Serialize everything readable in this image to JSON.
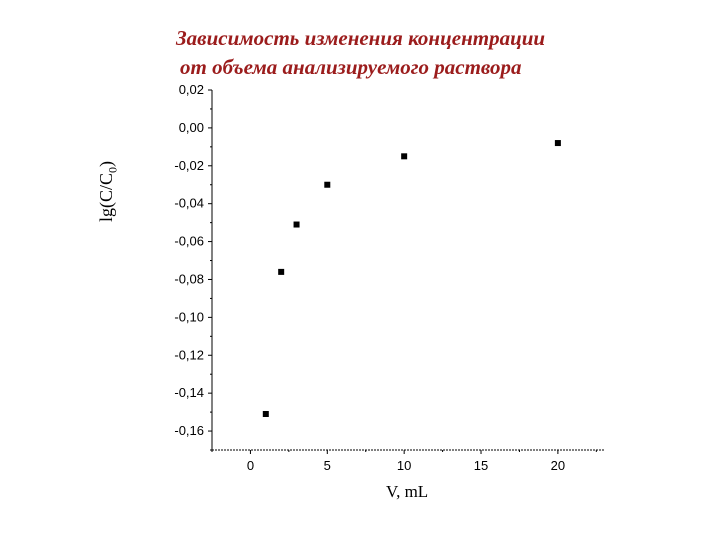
{
  "title": {
    "line1": "Зависимость изменения концентрации",
    "line2": "от объема анализируемого раствора"
  },
  "chart_data": {
    "type": "scatter",
    "title": "Зависимость изменения концентрации от объема анализируемого раствора",
    "xlabel": "V, mL",
    "ylabel": "lg(C/C0)",
    "xlim": [
      -2.5,
      23
    ],
    "ylim": [
      -0.17,
      0.02
    ],
    "x_ticks": [
      0,
      5,
      10,
      15,
      20
    ],
    "x_tick_labels": [
      "0",
      "5",
      "10",
      "15",
      "20"
    ],
    "y_ticks": [
      0.02,
      0.0,
      -0.02,
      -0.04,
      -0.06,
      -0.08,
      -0.1,
      -0.12,
      -0.14,
      -0.16
    ],
    "y_tick_labels": [
      "0,02",
      "0,00",
      "-0,02",
      "-0,04",
      "-0,06",
      "-0,08",
      "-0,10",
      "-0,12",
      "-0,14",
      "-0,16"
    ],
    "grid": false,
    "legend": "none",
    "marker_color": "#000000",
    "series": [
      {
        "points": [
          {
            "x": 1,
            "y": -0.151
          },
          {
            "x": 2,
            "y": -0.076
          },
          {
            "x": 3,
            "y": -0.051
          },
          {
            "x": 5,
            "y": -0.03
          },
          {
            "x": 10,
            "y": -0.015
          },
          {
            "x": 20,
            "y": -0.008
          }
        ]
      }
    ]
  }
}
